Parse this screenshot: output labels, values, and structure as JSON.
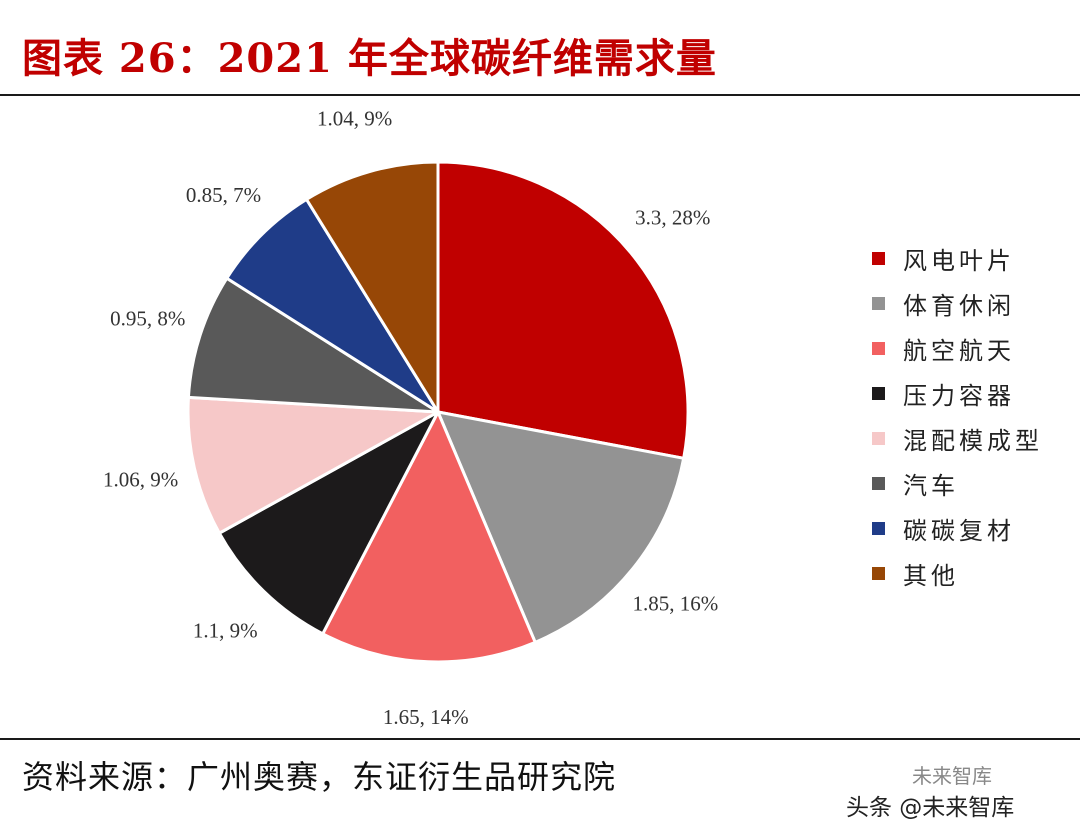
{
  "header": {
    "title": "图表 26：2021 年全球碳纤维需求量"
  },
  "footer": {
    "source": "资料来源：广州奥赛，东证衍生品研究院"
  },
  "watermark": {
    "text": "头条 @未来智库",
    "overlay": "未来智库"
  },
  "chart_data": {
    "type": "pie",
    "title": "2021 年全球碳纤维需求量",
    "slices": [
      {
        "name": "风电叶片",
        "value": 3.3,
        "percent": 28,
        "label": "3.3, 28%",
        "color": "#c00000"
      },
      {
        "name": "体育休闲",
        "value": 1.85,
        "percent": 16,
        "label": "1.85, 16%",
        "color": "#939393"
      },
      {
        "name": "航空航天",
        "value": 1.65,
        "percent": 14,
        "label": "1.65, 14%",
        "color": "#f26060"
      },
      {
        "name": "压力容器",
        "value": 1.1,
        "percent": 9,
        "label": "1.1, 9%",
        "color": "#1c1a1b"
      },
      {
        "name": "混配模成型",
        "value": 1.06,
        "percent": 9,
        "label": "1.06, 9%",
        "color": "#f6c8c8"
      },
      {
        "name": "汽车",
        "value": 0.95,
        "percent": 8,
        "label": "0.95, 8%",
        "color": "#595959"
      },
      {
        "name": "碳碳复材",
        "value": 0.85,
        "percent": 7,
        "label": "0.85, 7%",
        "color": "#1f3c88"
      },
      {
        "name": "其他",
        "value": 1.04,
        "percent": 9,
        "label": "1.04, 9%",
        "color": "#974706"
      }
    ],
    "legend_position": "right"
  }
}
